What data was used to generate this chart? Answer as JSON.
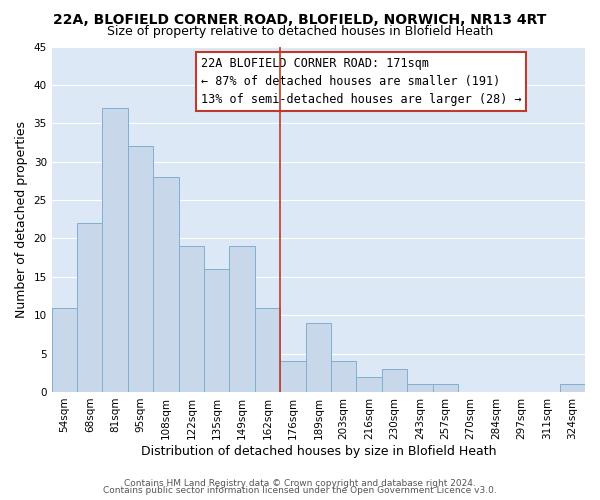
{
  "title_line1": "22A, BLOFIELD CORNER ROAD, BLOFIELD, NORWICH, NR13 4RT",
  "title_line2": "Size of property relative to detached houses in Blofield Heath",
  "xlabel": "Distribution of detached houses by size in Blofield Heath",
  "ylabel": "Number of detached properties",
  "footer_line1": "Contains HM Land Registry data © Crown copyright and database right 2024.",
  "footer_line2": "Contains public sector information licensed under the Open Government Licence v3.0.",
  "bar_labels": [
    "54sqm",
    "68sqm",
    "81sqm",
    "95sqm",
    "108sqm",
    "122sqm",
    "135sqm",
    "149sqm",
    "162sqm",
    "176sqm",
    "189sqm",
    "203sqm",
    "216sqm",
    "230sqm",
    "243sqm",
    "257sqm",
    "270sqm",
    "284sqm",
    "297sqm",
    "311sqm",
    "324sqm"
  ],
  "bar_values": [
    11,
    22,
    37,
    32,
    28,
    19,
    16,
    19,
    11,
    4,
    9,
    4,
    2,
    3,
    1,
    1,
    0,
    0,
    0,
    0,
    1
  ],
  "bar_color": "#c8d8ea",
  "bar_edge_color": "#7fb0d0",
  "ylim": [
    0,
    45
  ],
  "yticks": [
    0,
    5,
    10,
    15,
    20,
    25,
    30,
    35,
    40,
    45
  ],
  "annotation_title": "22A BLOFIELD CORNER ROAD: 171sqm",
  "annotation_line2": "← 87% of detached houses are smaller (191)",
  "annotation_line3": "13% of semi-detached houses are larger (28) →",
  "vline_color": "#c0392b",
  "background_color": "#ffffff",
  "plot_bg_color": "#dce8f5",
  "grid_color": "#ffffff",
  "title_fontsize": 10,
  "subtitle_fontsize": 9,
  "axis_label_fontsize": 9,
  "tick_fontsize": 7.5,
  "annotation_fontsize": 8.5,
  "footer_fontsize": 6.5
}
